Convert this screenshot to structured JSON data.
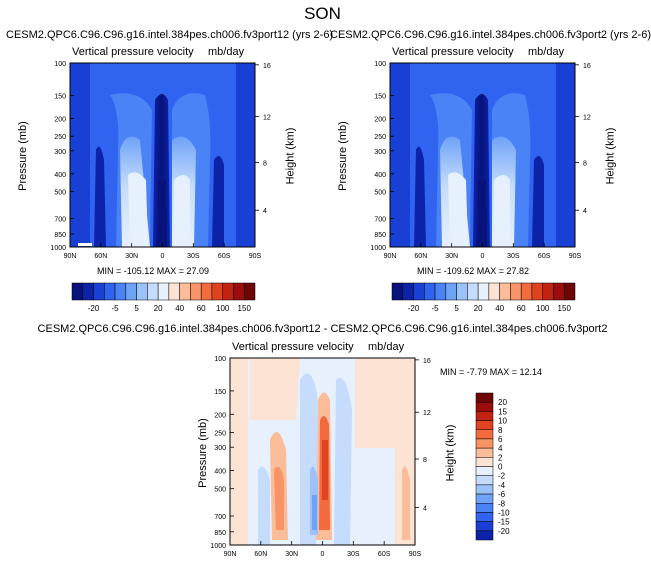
{
  "figure": {
    "title": "SON"
  },
  "colorbar_horizontal": {
    "labels": [
      "-20",
      "-5",
      "5",
      "20",
      "40",
      "60",
      "100",
      "150"
    ],
    "colors": [
      "#08127a",
      "#0c22a8",
      "#1a3fd4",
      "#2f63f0",
      "#4a83f6",
      "#6fa3f8",
      "#9cc2fa",
      "#c6dcfc",
      "#e7f0fd",
      "#fde3d3",
      "#fbbc9a",
      "#f89466",
      "#f26a3d",
      "#e0431f",
      "#c22211",
      "#9c0c0c",
      "#6f0606"
    ]
  },
  "colorbar_vertical": {
    "labels": [
      "20",
      "15",
      "10",
      "8",
      "6",
      "4",
      "2",
      "0",
      "-2",
      "-4",
      "-6",
      "-8",
      "-10",
      "-15",
      "-20"
    ],
    "colors": [
      "#6f0606",
      "#9c0c0c",
      "#c22211",
      "#e0431f",
      "#f26a3d",
      "#f89466",
      "#fbbc9a",
      "#fde3d3",
      "#e7f0fd",
      "#c6dcfc",
      "#9cc2fa",
      "#6fa3f8",
      "#4a83f6",
      "#2f63f0",
      "#1a3fd4",
      "#0c22a8"
    ]
  },
  "chart_data": [
    {
      "type": "heatmap",
      "title": "CESM2.QPC6.C96.C96.g16.intel.384pes.ch006.fv3port12 (yrs 2-6)",
      "subtitle_left": "Vertical pressure velocity",
      "subtitle_right": "mb/day",
      "ylabel": "Pressure (mb)",
      "ylabel_right": "Height (km)",
      "x_ticks": [
        "90N",
        "60N",
        "30N",
        "0",
        "30S",
        "60S",
        "90S"
      ],
      "y_ticks": [
        "100",
        "150",
        "200",
        "250",
        "300",
        "400",
        "500",
        "700",
        "850",
        "1000"
      ],
      "y_ticks_right": [
        "16",
        "12",
        "8",
        "4"
      ],
      "min_max": "MIN = -105.12  MAX = 27.09",
      "min": -105.12,
      "max": 27.09
    },
    {
      "type": "heatmap",
      "title": "CESM2.QPC6.C96.C96.g16.intel.384pes.ch006.fv3port2 (yrs 2-6)",
      "subtitle_left": "Vertical pressure velocity",
      "subtitle_right": "mb/day",
      "ylabel": "Pressure (mb)",
      "ylabel_right": "Height (km)",
      "x_ticks": [
        "90N",
        "60N",
        "30N",
        "0",
        "30S",
        "60S",
        "90S"
      ],
      "y_ticks": [
        "100",
        "150",
        "200",
        "250",
        "300",
        "400",
        "500",
        "700",
        "850",
        "1000"
      ],
      "y_ticks_right": [
        "16",
        "12",
        "8",
        "4"
      ],
      "min_max": "MIN = -109.62  MAX = 27.82",
      "min": -109.62,
      "max": 27.82
    },
    {
      "type": "heatmap",
      "title": "CESM2.QPC6.C96.C96.g16.intel.384pes.ch006.fv3port12 - CESM2.QPC6.C96.C96.g16.intel.384pes.ch006.fv3port2",
      "subtitle_left": "Vertical pressure velocity",
      "subtitle_right": "mb/day",
      "ylabel": "Pressure (mb)",
      "ylabel_right": "Height (km)",
      "x_ticks": [
        "90N",
        "60N",
        "30N",
        "0",
        "30S",
        "60S",
        "90S"
      ],
      "y_ticks": [
        "100",
        "150",
        "200",
        "250",
        "300",
        "400",
        "500",
        "700",
        "850",
        "1000"
      ],
      "y_ticks_right": [
        "16",
        "12",
        "8",
        "4"
      ],
      "min_max": "MIN = -7.79  MAX = 12.14",
      "min": -7.79,
      "max": 12.14
    }
  ]
}
